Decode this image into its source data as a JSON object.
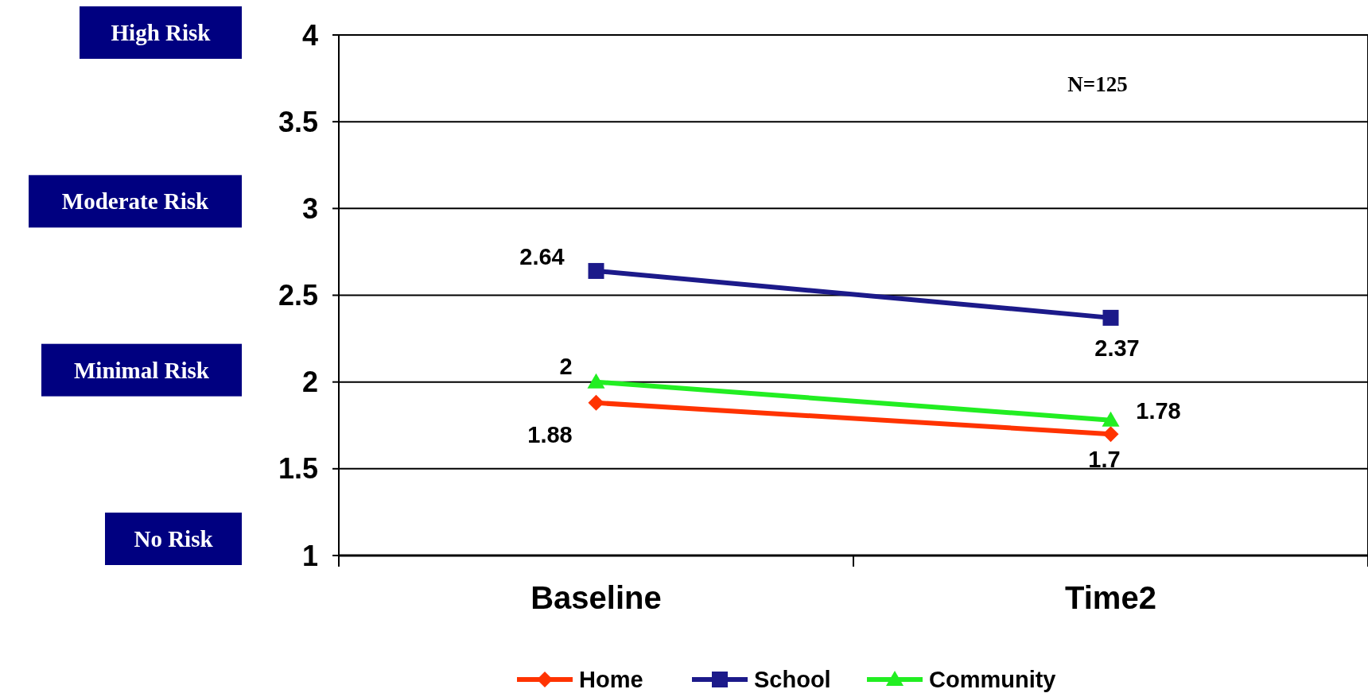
{
  "chart_data": {
    "type": "line",
    "categories": [
      "Baseline",
      "Time2"
    ],
    "series": [
      {
        "name": "Home",
        "color": "#ff3300",
        "values": [
          1.88,
          1.7
        ],
        "marker": "diamond"
      },
      {
        "name": "School",
        "color": "#1c1a8a",
        "values": [
          2.64,
          2.37
        ],
        "marker": "square"
      },
      {
        "name": "Community",
        "color": "#22ee22",
        "values": [
          2,
          1.78
        ],
        "marker": "triangle"
      }
    ],
    "ylim": [
      1,
      4
    ],
    "yticks": [
      1,
      1.5,
      2,
      2.5,
      3,
      3.5,
      4
    ],
    "grid": "y",
    "legend": "bottom",
    "data_labels": true,
    "annotations": [
      "High Risk",
      "Moderate Risk",
      "Minimal Risk",
      "No Risk",
      "N=125"
    ]
  }
}
